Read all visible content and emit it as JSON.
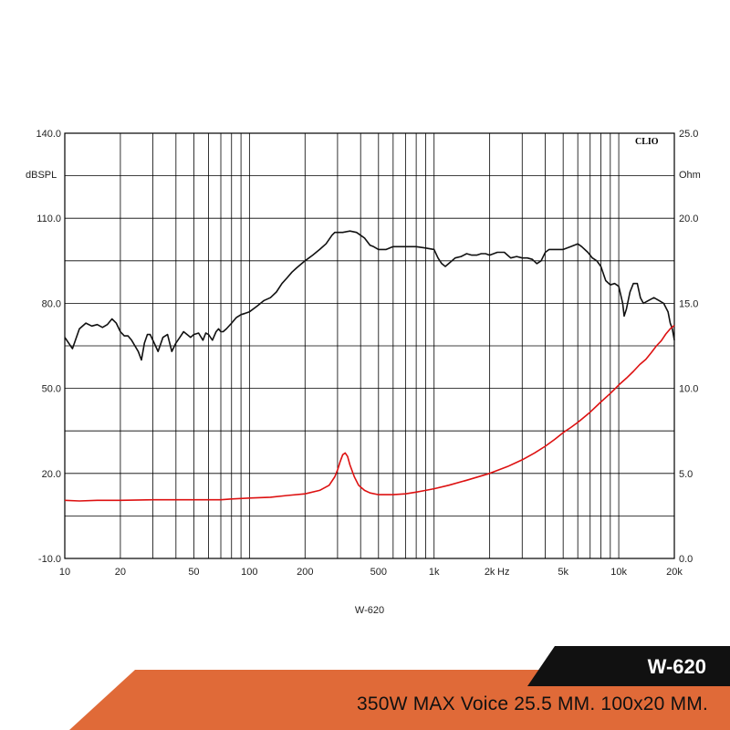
{
  "chart_data": {
    "type": "line",
    "brand": "CLIO",
    "caption": "W-620",
    "y_left_unit": "dBSPL",
    "y_right_unit": "Ohm",
    "x_unit": "Hz",
    "x_scale": "log",
    "xlim": [
      10,
      20000
    ],
    "ylim_left": [
      -10,
      140
    ],
    "ylim_right": [
      0,
      25
    ],
    "grid": true,
    "x_tick_labels": [
      {
        "x": 10,
        "label": "10"
      },
      {
        "x": 20,
        "label": "20"
      },
      {
        "x": 50,
        "label": "50"
      },
      {
        "x": 100,
        "label": "100"
      },
      {
        "x": 200,
        "label": "200"
      },
      {
        "x": 500,
        "label": "500"
      },
      {
        "x": 1000,
        "label": "1k"
      },
      {
        "x": 2000,
        "label": "2k"
      },
      {
        "x": 5000,
        "label": "5k"
      },
      {
        "x": 10000,
        "label": "10k"
      },
      {
        "x": 20000,
        "label": "20k"
      }
    ],
    "y_left_ticks": [
      {
        "y": 140,
        "label": "140.0"
      },
      {
        "y": 110,
        "label": "110.0"
      },
      {
        "y": 80,
        "label": "80.0"
      },
      {
        "y": 50,
        "label": "50.0"
      },
      {
        "y": 20,
        "label": "20.0"
      },
      {
        "y": -10,
        "label": "-10.0"
      }
    ],
    "y_right_ticks": [
      {
        "y": 25,
        "label": "25.0"
      },
      {
        "y": 20,
        "label": "20.0"
      },
      {
        "y": 15,
        "label": "15.0"
      },
      {
        "y": 10,
        "label": "10.0"
      },
      {
        "y": 5,
        "label": "5.0"
      },
      {
        "y": 0,
        "label": "0.0"
      }
    ],
    "series": [
      {
        "color": "#111111",
        "axis": "left",
        "points": [
          [
            10,
            68
          ],
          [
            11,
            64
          ],
          [
            12,
            71
          ],
          [
            13,
            73
          ],
          [
            14,
            72
          ],
          [
            15,
            72.5
          ],
          [
            16,
            71.5
          ],
          [
            17,
            72.5
          ],
          [
            18,
            74.5
          ],
          [
            19,
            73
          ],
          [
            20,
            70
          ],
          [
            21,
            68.5
          ],
          [
            22,
            68.5
          ],
          [
            23,
            67
          ],
          [
            25,
            63
          ],
          [
            26,
            60
          ],
          [
            27,
            66
          ],
          [
            28,
            69
          ],
          [
            29,
            69
          ],
          [
            31,
            65
          ],
          [
            32,
            63
          ],
          [
            34,
            68
          ],
          [
            36,
            69
          ],
          [
            38,
            63
          ],
          [
            40,
            66
          ],
          [
            42,
            68
          ],
          [
            44,
            70
          ],
          [
            46,
            69
          ],
          [
            48,
            68
          ],
          [
            50,
            69
          ],
          [
            53,
            69.5
          ],
          [
            56,
            67
          ],
          [
            58,
            69.5
          ],
          [
            60,
            69
          ],
          [
            63,
            67
          ],
          [
            66,
            70
          ],
          [
            68,
            71
          ],
          [
            70,
            70
          ],
          [
            72,
            70
          ],
          [
            75,
            71
          ],
          [
            80,
            73
          ],
          [
            85,
            75
          ],
          [
            90,
            76
          ],
          [
            95,
            76.5
          ],
          [
            100,
            77
          ],
          [
            110,
            79
          ],
          [
            120,
            81
          ],
          [
            130,
            82
          ],
          [
            140,
            84
          ],
          [
            150,
            87
          ],
          [
            160,
            89
          ],
          [
            170,
            91
          ],
          [
            180,
            92.5
          ],
          [
            200,
            95
          ],
          [
            220,
            97
          ],
          [
            240,
            99
          ],
          [
            260,
            101
          ],
          [
            280,
            104
          ],
          [
            290,
            105
          ],
          [
            320,
            105
          ],
          [
            350,
            105.5
          ],
          [
            380,
            105
          ],
          [
            400,
            104
          ],
          [
            420,
            103
          ],
          [
            450,
            100.5
          ],
          [
            470,
            100
          ],
          [
            500,
            99
          ],
          [
            550,
            99
          ],
          [
            600,
            100
          ],
          [
            650,
            100
          ],
          [
            700,
            100
          ],
          [
            800,
            100
          ],
          [
            900,
            99.5
          ],
          [
            1000,
            99
          ],
          [
            1050,
            96
          ],
          [
            1100,
            94
          ],
          [
            1150,
            93
          ],
          [
            1200,
            94
          ],
          [
            1300,
            96
          ],
          [
            1400,
            96.5
          ],
          [
            1500,
            97.5
          ],
          [
            1600,
            97
          ],
          [
            1700,
            97
          ],
          [
            1800,
            97.5
          ],
          [
            1900,
            97.5
          ],
          [
            2000,
            97
          ],
          [
            2200,
            98
          ],
          [
            2400,
            98
          ],
          [
            2500,
            97
          ],
          [
            2600,
            96
          ],
          [
            2800,
            96.5
          ],
          [
            3000,
            96
          ],
          [
            3200,
            96
          ],
          [
            3400,
            95.5
          ],
          [
            3600,
            94
          ],
          [
            3800,
            95
          ],
          [
            4000,
            98
          ],
          [
            4200,
            99
          ],
          [
            4500,
            99
          ],
          [
            5000,
            99
          ],
          [
            5500,
            100
          ],
          [
            6000,
            101
          ],
          [
            6300,
            100
          ],
          [
            6800,
            98
          ],
          [
            7200,
            96
          ],
          [
            7600,
            95
          ],
          [
            8000,
            93
          ],
          [
            8500,
            88
          ],
          [
            9000,
            86.5
          ],
          [
            9500,
            87
          ],
          [
            10000,
            86
          ],
          [
            10500,
            80
          ],
          [
            10700,
            75.5
          ],
          [
            11000,
            78
          ],
          [
            11500,
            84
          ],
          [
            12000,
            87
          ],
          [
            12600,
            87
          ],
          [
            13100,
            82
          ],
          [
            13600,
            80
          ],
          [
            14500,
            81
          ],
          [
            15500,
            82
          ],
          [
            16500,
            81
          ],
          [
            17500,
            80
          ],
          [
            18500,
            77
          ],
          [
            19000,
            73
          ],
          [
            19500,
            71
          ],
          [
            20000,
            67
          ]
        ]
      },
      {
        "color": "#dd1111",
        "axis": "right",
        "points": [
          [
            10,
            3.42
          ],
          [
            12,
            3.38
          ],
          [
            15,
            3.42
          ],
          [
            20,
            3.42
          ],
          [
            30,
            3.45
          ],
          [
            50,
            3.45
          ],
          [
            70,
            3.45
          ],
          [
            80,
            3.5
          ],
          [
            100,
            3.55
          ],
          [
            130,
            3.6
          ],
          [
            160,
            3.7
          ],
          [
            200,
            3.8
          ],
          [
            240,
            4.0
          ],
          [
            270,
            4.3
          ],
          [
            290,
            4.8
          ],
          [
            300,
            5.2
          ],
          [
            310,
            5.7
          ],
          [
            320,
            6.1
          ],
          [
            330,
            6.2
          ],
          [
            340,
            6.0
          ],
          [
            350,
            5.5
          ],
          [
            370,
            4.8
          ],
          [
            390,
            4.3
          ],
          [
            420,
            4.0
          ],
          [
            450,
            3.85
          ],
          [
            500,
            3.75
          ],
          [
            550,
            3.75
          ],
          [
            600,
            3.75
          ],
          [
            700,
            3.8
          ],
          [
            800,
            3.9
          ],
          [
            900,
            4.0
          ],
          [
            1000,
            4.1
          ],
          [
            1200,
            4.3
          ],
          [
            1500,
            4.6
          ],
          [
            2000,
            5.0
          ],
          [
            2500,
            5.4
          ],
          [
            3000,
            5.8
          ],
          [
            3500,
            6.2
          ],
          [
            4000,
            6.6
          ],
          [
            4500,
            7.0
          ],
          [
            5000,
            7.4
          ],
          [
            5500,
            7.7
          ],
          [
            6000,
            8.0
          ],
          [
            7000,
            8.6
          ],
          [
            8000,
            9.2
          ],
          [
            9000,
            9.7
          ],
          [
            10000,
            10.2
          ],
          [
            11000,
            10.6
          ],
          [
            12000,
            11.0
          ],
          [
            13000,
            11.4
          ],
          [
            14000,
            11.7
          ],
          [
            15000,
            12.1
          ],
          [
            16000,
            12.5
          ],
          [
            17000,
            12.8
          ],
          [
            18000,
            13.2
          ],
          [
            19000,
            13.5
          ],
          [
            20000,
            13.7
          ]
        ]
      }
    ]
  },
  "banner": {
    "model": "W-620",
    "spec": "350W  MAX Voice 25.5 MM. 100x20 MM.",
    "orange": "#e06a38",
    "black": "#111111"
  }
}
